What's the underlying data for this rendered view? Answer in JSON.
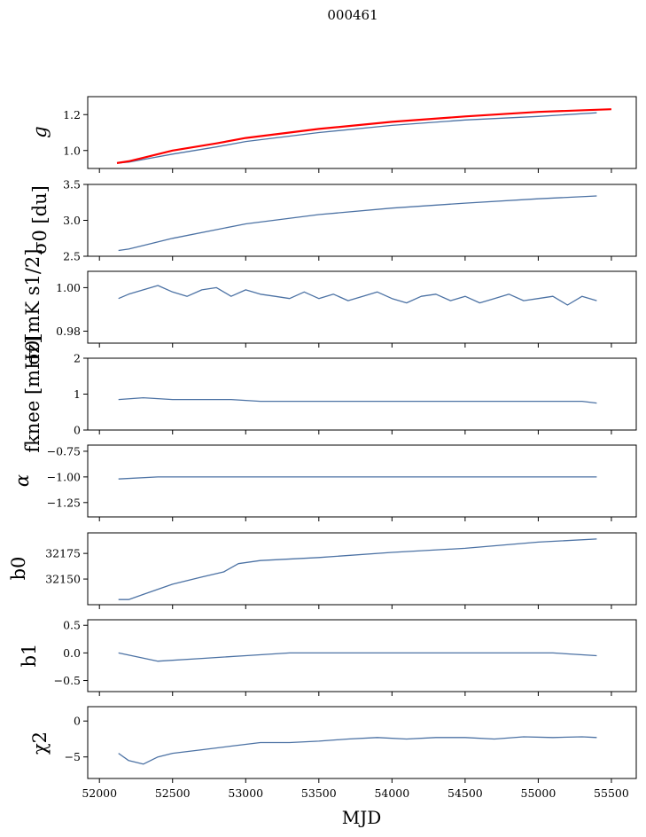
{
  "figure": {
    "title": "000461",
    "xlabel": "MJD",
    "colors": {
      "series": "#4c72a4",
      "fit": "#ff0000",
      "axes": "#000000"
    }
  },
  "chart_data": [
    {
      "type": "line",
      "ylabel": "g",
      "xlim": [
        51920,
        55670
      ],
      "ylim": [
        0.9,
        1.3
      ],
      "yticks": [
        1.0,
        1.2
      ],
      "ytick_labels": [
        "1.0",
        "1.2"
      ],
      "series": [
        {
          "x": [
            52120,
            52200,
            52300,
            52500,
            52800,
            53000,
            53500,
            54000,
            54500,
            55000,
            55400
          ],
          "values": [
            0.93,
            0.935,
            0.95,
            0.98,
            1.02,
            1.05,
            1.1,
            1.14,
            1.17,
            1.19,
            1.21
          ]
        },
        {
          "x": [
            52120,
            52200,
            52300,
            52500,
            52800,
            53000,
            53500,
            54000,
            54500,
            55000,
            55500
          ],
          "values": [
            0.93,
            0.94,
            0.96,
            1.0,
            1.04,
            1.07,
            1.12,
            1.16,
            1.19,
            1.215,
            1.23
          ]
        }
      ]
    },
    {
      "type": "line",
      "ylabel": "σ0 [du]",
      "xlim": [
        51920,
        55670
      ],
      "ylim": [
        2.5,
        3.5
      ],
      "yticks": [
        2.5,
        3.0,
        3.5
      ],
      "ytick_labels": [
        "2.5",
        "3.0",
        "3.5"
      ],
      "series": [
        {
          "x": [
            52130,
            52200,
            52300,
            52500,
            52800,
            53000,
            53500,
            54000,
            54500,
            55000,
            55400
          ],
          "values": [
            2.58,
            2.6,
            2.65,
            2.75,
            2.87,
            2.95,
            3.08,
            3.17,
            3.24,
            3.3,
            3.34
          ]
        }
      ]
    },
    {
      "type": "line",
      "ylabel": "σ0[mK s1/2]",
      "xlim": [
        51920,
        55670
      ],
      "ylim": [
        0.9745,
        1.0075
      ],
      "yticks": [
        0.98,
        1.0
      ],
      "ytick_labels": [
        "0.98",
        "1.00"
      ],
      "series": [
        {
          "x": [
            52130,
            52200,
            52300,
            52400,
            52500,
            52600,
            52700,
            52800,
            52900,
            53000,
            53100,
            53200,
            53300,
            53400,
            53500,
            53600,
            53700,
            53800,
            53900,
            54000,
            54100,
            54200,
            54300,
            54400,
            54500,
            54600,
            54700,
            54800,
            54900,
            55000,
            55100,
            55200,
            55300,
            55400
          ],
          "values": [
            0.995,
            0.997,
            0.999,
            1.001,
            0.998,
            0.996,
            0.999,
            1.0,
            0.996,
            0.999,
            0.997,
            0.996,
            0.995,
            0.998,
            0.995,
            0.997,
            0.994,
            0.996,
            0.998,
            0.995,
            0.993,
            0.996,
            0.997,
            0.994,
            0.996,
            0.993,
            0.995,
            0.997,
            0.994,
            0.995,
            0.996,
            0.992,
            0.996,
            0.994
          ]
        }
      ]
    },
    {
      "type": "line",
      "ylabel": "fknee [mHz]",
      "xlim": [
        51920,
        55670
      ],
      "ylim": [
        0,
        2
      ],
      "yticks": [
        0,
        1,
        2
      ],
      "ytick_labels": [
        "0",
        "1",
        "2"
      ],
      "series": [
        {
          "x": [
            52130,
            52300,
            52500,
            52700,
            52900,
            53100,
            53300,
            53500,
            53700,
            53900,
            54100,
            54300,
            54500,
            54700,
            54900,
            55100,
            55300,
            55400
          ],
          "values": [
            0.85,
            0.9,
            0.85,
            0.85,
            0.85,
            0.8,
            0.8,
            0.8,
            0.8,
            0.8,
            0.8,
            0.8,
            0.8,
            0.8,
            0.8,
            0.8,
            0.8,
            0.75
          ]
        }
      ]
    },
    {
      "type": "line",
      "ylabel": "α",
      "xlim": [
        51920,
        55670
      ],
      "ylim": [
        -1.39,
        -0.69
      ],
      "yticks": [
        -1.25,
        -1.0,
        -0.75
      ],
      "ytick_labels": [
        "−1.25",
        "−1.00",
        "−0.75"
      ],
      "series": [
        {
          "x": [
            52130,
            52400,
            52700,
            53000,
            53300,
            53600,
            53900,
            54200,
            54500,
            54800,
            55100,
            55400
          ],
          "values": [
            -1.02,
            -1.0,
            -1.0,
            -1.0,
            -1.0,
            -1.0,
            -1.0,
            -1.0,
            -1.0,
            -1.0,
            -1.0,
            -1.0
          ]
        }
      ]
    },
    {
      "type": "line",
      "ylabel": "b0",
      "xlim": [
        51920,
        55670
      ],
      "ylim": [
        32125,
        32195
      ],
      "yticks": [
        32150,
        32175
      ],
      "ytick_labels": [
        "32150",
        "32175"
      ],
      "series": [
        {
          "x": [
            52130,
            52200,
            52300,
            52500,
            52700,
            52850,
            52950,
            53100,
            53500,
            54000,
            54500,
            55000,
            55400
          ],
          "values": [
            32130,
            32130,
            32135,
            32145,
            32152,
            32157,
            32165,
            32168,
            32171,
            32176,
            32180,
            32186,
            32189
          ]
        }
      ]
    },
    {
      "type": "line",
      "ylabel": "b1",
      "xlim": [
        51920,
        55670
      ],
      "ylim": [
        -0.7,
        0.6
      ],
      "yticks": [
        -0.5,
        0.0,
        0.5
      ],
      "ytick_labels": [
        "−0.5",
        "0.0",
        "0.5"
      ],
      "series": [
        {
          "x": [
            52130,
            52400,
            52700,
            53000,
            53300,
            53600,
            53900,
            54200,
            54500,
            54800,
            55100,
            55400
          ],
          "values": [
            0.0,
            -0.15,
            -0.1,
            -0.05,
            0.0,
            0.0,
            0.0,
            0.0,
            0.0,
            0.0,
            0.0,
            -0.05
          ]
        }
      ]
    },
    {
      "type": "line",
      "ylabel": "χ2",
      "xlim": [
        51920,
        55670
      ],
      "ylim": [
        -8,
        2
      ],
      "yticks": [
        -5,
        0
      ],
      "ytick_labels": [
        "−5",
        "0"
      ],
      "xticks": [
        52000,
        52500,
        53000,
        53500,
        54000,
        54500,
        55000,
        55500
      ],
      "xtick_labels": [
        "52000",
        "52500",
        "53000",
        "53500",
        "54000",
        "54500",
        "55000",
        "55500"
      ],
      "series": [
        {
          "x": [
            52130,
            52200,
            52300,
            52400,
            52500,
            52700,
            52900,
            53100,
            53300,
            53500,
            53700,
            53900,
            54100,
            54300,
            54500,
            54700,
            54900,
            55100,
            55300,
            55400
          ],
          "values": [
            -4.5,
            -5.5,
            -6,
            -5,
            -4.5,
            -4,
            -3.5,
            -3,
            -3,
            -2.8,
            -2.5,
            -2.3,
            -2.5,
            -2.3,
            -2.3,
            -2.5,
            -2.2,
            -2.3,
            -2.2,
            -2.3
          ]
        }
      ]
    }
  ]
}
